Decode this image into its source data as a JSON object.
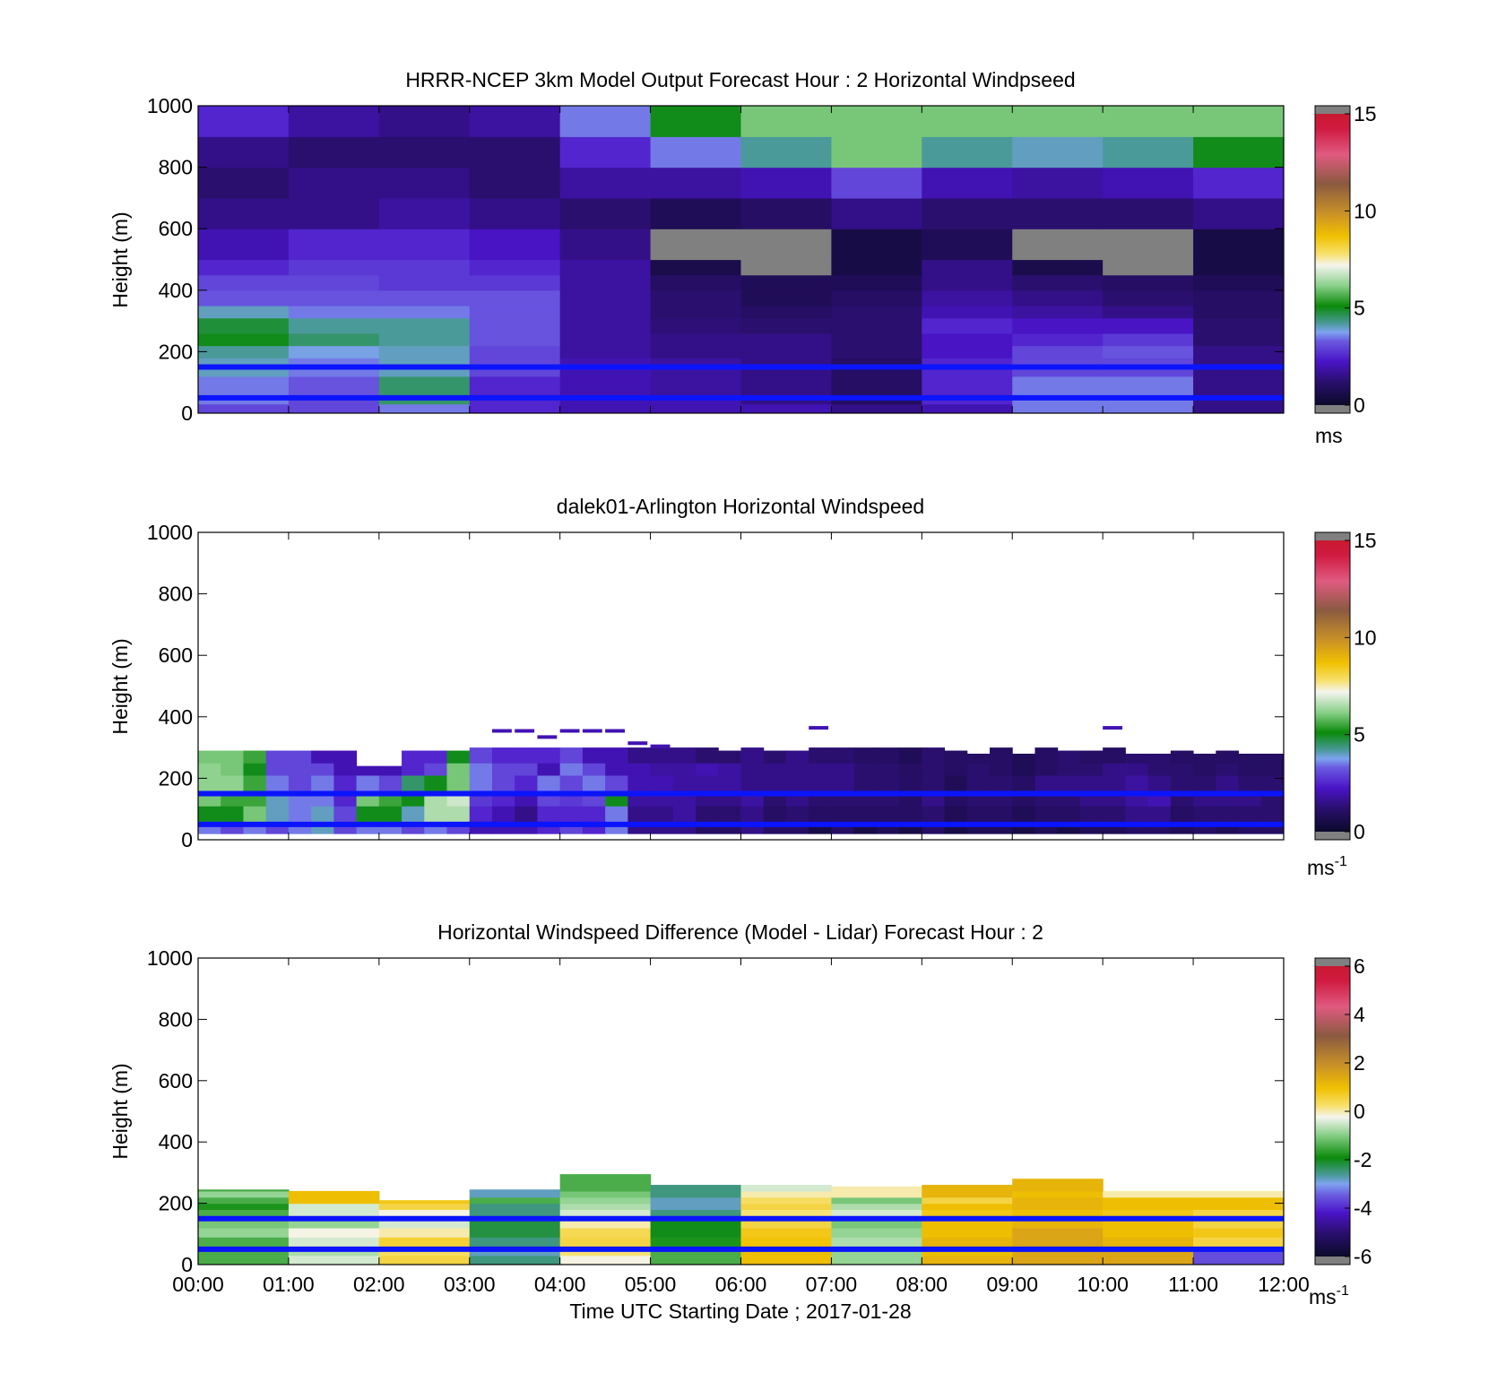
{
  "figure": {
    "xlabel": "Time UTC  Starting Date ; 2017-01-28",
    "x_tick_labels": [
      "00:00",
      "01:00",
      "02:00",
      "03:00",
      "04:00",
      "05:00",
      "06:00",
      "07:00",
      "08:00",
      "09:00",
      "10:00",
      "11:00",
      "12:00"
    ],
    "reference_line_heights": [
      50,
      150
    ],
    "reference_line_color": "#0a14ff"
  },
  "chart_data": [
    {
      "type": "heatmap",
      "title": "HRRR-NCEP 3km Model Output   Forecast Hour : 2 Horizontal Windpseed",
      "ylabel": "Height (m)",
      "ylim": [
        0,
        1000
      ],
      "y_ticks": [
        "0",
        "200",
        "400",
        "600",
        "800",
        "1000"
      ],
      "xlim_hours": [
        0,
        12
      ],
      "colorbar": {
        "range": [
          0,
          15
        ],
        "ticks": [
          "0",
          "5",
          "10",
          "15"
        ],
        "unit": "ms",
        "unit_superscript": ""
      },
      "row_bounds": [
        0,
        30,
        60,
        120,
        180,
        220,
        260,
        310,
        350,
        400,
        450,
        500,
        600,
        700,
        800,
        900,
        1000
      ],
      "columns_hours": [
        0,
        1,
        2,
        3,
        4,
        5,
        6,
        7,
        8,
        9,
        10,
        11
      ],
      "values": [
        [
          3.0,
          3.0,
          3.5,
          2.5,
          2.0,
          2.0,
          2.0,
          1.5,
          2.0,
          3.5,
          3.5,
          1.5
        ],
        [
          3.5,
          3.0,
          4.5,
          2.5,
          2.0,
          2.0,
          1.5,
          1.0,
          2.5,
          3.5,
          3.5,
          1.5
        ],
        [
          3.5,
          3.2,
          4.5,
          2.5,
          2.0,
          1.8,
          1.5,
          1.0,
          2.5,
          3.5,
          3.5,
          1.5
        ],
        [
          4.0,
          3.5,
          4.0,
          3.0,
          2.0,
          1.8,
          1.5,
          1.0,
          2.5,
          3.0,
          3.0,
          1.5
        ],
        [
          4.2,
          3.8,
          4.0,
          3.0,
          1.8,
          1.5,
          1.5,
          1.2,
          2.2,
          3.0,
          3.2,
          1.5
        ],
        [
          5.0,
          4.5,
          4.2,
          3.2,
          1.8,
          1.5,
          1.5,
          1.2,
          2.2,
          2.5,
          2.8,
          1.2
        ],
        [
          4.8,
          4.2,
          4.2,
          3.2,
          1.8,
          1.3,
          1.2,
          1.2,
          2.5,
          2.2,
          2.2,
          1.2
        ],
        [
          4.0,
          3.5,
          3.5,
          3.2,
          1.8,
          1.2,
          1.0,
          1.2,
          2.0,
          1.8,
          1.5,
          1.0
        ],
        [
          3.2,
          3.2,
          3.2,
          3.2,
          1.8,
          1.2,
          0.8,
          1.0,
          1.8,
          1.5,
          1.2,
          1.0
        ],
        [
          3.0,
          3.0,
          2.8,
          2.8,
          1.8,
          1.0,
          0.8,
          0.8,
          1.5,
          1.2,
          1.0,
          0.8
        ],
        [
          2.5,
          2.8,
          2.8,
          2.5,
          1.8,
          0.6,
          0.2,
          0.5,
          1.5,
          0.6,
          0.2,
          0.5
        ],
        [
          2.0,
          2.5,
          2.5,
          2.2,
          1.5,
          0.2,
          0.2,
          0.5,
          0.8,
          0.2,
          0.2,
          0.5
        ],
        [
          1.5,
          1.5,
          1.8,
          1.5,
          1.2,
          0.8,
          1.0,
          1.5,
          1.2,
          1.2,
          1.2,
          1.5
        ],
        [
          1.2,
          1.5,
          1.5,
          1.2,
          1.8,
          1.8,
          2.0,
          3.0,
          2.0,
          1.8,
          2.0,
          2.5
        ],
        [
          1.5,
          1.2,
          1.2,
          1.2,
          2.5,
          3.5,
          4.2,
          6.0,
          4.2,
          4.0,
          4.2,
          5.0
        ],
        [
          2.5,
          1.8,
          1.5,
          1.8,
          3.5,
          5.0,
          6.0,
          6.0,
          6.0,
          6.0,
          6.0,
          6.0
        ]
      ]
    },
    {
      "type": "heatmap",
      "title": "dalek01-Arlington  Horizontal Windspeed",
      "ylabel": "Height (m)",
      "ylim": [
        0,
        1000
      ],
      "y_ticks": [
        "0",
        "200",
        "400",
        "600",
        "800",
        "1000"
      ],
      "xlim_hours": [
        0,
        12
      ],
      "colorbar": {
        "range": [
          0,
          15
        ],
        "ticks": [
          "0",
          "5",
          "10",
          "15"
        ],
        "unit": "ms",
        "unit_superscript": "-1"
      },
      "column_width_hours": 0.25,
      "column_tops_m": [
        290,
        290,
        290,
        290,
        290,
        290,
        290,
        240,
        240,
        290,
        290,
        290,
        300,
        360,
        360,
        340,
        360,
        360,
        360,
        320,
        310,
        300,
        300,
        290,
        300,
        290,
        290,
        370,
        300,
        300,
        300,
        300,
        300,
        290,
        280,
        300,
        280,
        300,
        290,
        290,
        370,
        280,
        280,
        290,
        280,
        290,
        280,
        280
      ],
      "level_values": [
        [
          3.5,
          3.0,
          3.5,
          3.0,
          3.5,
          4.0,
          3.0,
          3.5,
          3.5,
          3.0,
          3.5,
          3.0,
          2.0,
          2.0,
          2.0,
          2.5,
          3.0,
          2.5,
          3.5,
          1.5,
          1.5,
          1.5,
          1.0,
          1.0,
          1.5,
          1.0,
          1.0,
          0.5,
          1.0,
          0.5,
          0.8,
          0.5,
          1.0,
          0.5,
          0.8,
          0.8,
          0.5,
          0.8,
          0.5,
          0.8,
          0.8,
          1.0,
          1.0,
          0.8,
          1.0,
          0.8,
          1.0,
          1.0
        ],
        [
          5.0,
          5.0,
          6.0,
          4.0,
          3.5,
          4.0,
          3.0,
          5.0,
          5.0,
          4.0,
          6.5,
          6.5,
          2.5,
          2.0,
          1.5,
          2.5,
          2.5,
          2.5,
          3.5,
          1.5,
          1.5,
          1.8,
          1.2,
          1.2,
          1.5,
          1.0,
          1.2,
          1.0,
          1.0,
          1.0,
          1.0,
          1.0,
          1.2,
          0.8,
          1.0,
          1.0,
          0.8,
          1.0,
          1.0,
          1.2,
          1.2,
          1.5,
          1.5,
          1.0,
          1.2,
          1.2,
          1.2,
          1.2
        ],
        [
          6.0,
          5.5,
          5.5,
          4.0,
          3.5,
          3.5,
          2.5,
          6.0,
          5.5,
          5.0,
          6.5,
          6.8,
          2.8,
          2.5,
          2.0,
          3.0,
          2.8,
          3.0,
          5.0,
          1.8,
          1.8,
          1.8,
          1.5,
          1.5,
          1.8,
          1.2,
          1.5,
          1.2,
          1.2,
          1.2,
          1.2,
          1.0,
          1.5,
          1.0,
          1.2,
          1.2,
          1.0,
          1.2,
          1.2,
          1.5,
          1.5,
          1.8,
          2.0,
          1.2,
          1.5,
          1.5,
          1.5,
          1.2
        ],
        [
          6.2,
          6.2,
          5.5,
          3.5,
          3.0,
          3.5,
          2.5,
          3.5,
          3.0,
          4.5,
          5.0,
          6.0,
          3.5,
          3.0,
          2.5,
          3.5,
          3.0,
          3.5,
          3.0,
          2.0,
          2.0,
          1.8,
          1.8,
          1.8,
          1.5,
          1.5,
          1.5,
          1.5,
          1.5,
          1.2,
          1.2,
          1.0,
          1.2,
          0.8,
          1.2,
          1.2,
          1.0,
          1.5,
          1.5,
          1.5,
          1.5,
          1.8,
          1.5,
          1.2,
          1.2,
          1.5,
          1.2,
          1.2
        ],
        [
          6.2,
          6.0,
          5.0,
          3.0,
          3.0,
          3.0,
          2.0,
          2.0,
          2.0,
          2.5,
          3.0,
          6.0,
          3.5,
          3.0,
          3.0,
          2.0,
          3.5,
          3.0,
          2.0,
          2.0,
          1.8,
          1.8,
          2.0,
          1.8,
          1.5,
          1.5,
          1.5,
          1.5,
          1.5,
          1.2,
          1.2,
          1.0,
          1.2,
          1.0,
          1.2,
          1.0,
          0.8,
          1.0,
          1.2,
          1.2,
          1.5,
          1.5,
          1.2,
          1.2,
          1.0,
          1.2,
          1.0,
          1.0
        ],
        [
          6.0,
          6.0,
          5.5,
          3.0,
          3.0,
          2.0,
          2.0,
          0,
          0,
          2.5,
          2.5,
          5.0,
          3.0,
          2.5,
          2.5,
          2.5,
          3.0,
          2.0,
          2.0,
          1.5,
          1.5,
          1.5,
          1.2,
          1.2,
          1.5,
          1.2,
          1.5,
          1.2,
          1.2,
          1.0,
          1.0,
          0.8,
          1.2,
          1.0,
          1.0,
          1.0,
          0.8,
          1.0,
          1.2,
          1.0,
          1.0,
          1.2,
          1.2,
          1.0,
          1.0,
          1.0,
          1.0,
          1.0
        ]
      ],
      "level_bounds": [
        20,
        60,
        110,
        160,
        210,
        250,
        300
      ]
    },
    {
      "type": "heatmap",
      "title": "Horizontal Windspeed Difference (Model - Lidar) Forecast Hour : 2",
      "ylabel": "Height (m)",
      "ylim": [
        0,
        1000
      ],
      "y_ticks": [
        "0",
        "200",
        "400",
        "600",
        "800",
        "1000"
      ],
      "xlim_hours": [
        0,
        12
      ],
      "colorbar": {
        "range": [
          -6,
          6
        ],
        "ticks": [
          "-6",
          "-4",
          "-2",
          "0",
          "2",
          "4",
          "6"
        ],
        "unit": "ms",
        "unit_superscript": "-1"
      },
      "row_bounds": [
        0,
        30,
        60,
        90,
        120,
        150,
        180,
        200,
        220,
        240,
        260,
        280,
        300
      ],
      "columns_hours": [
        0,
        1,
        2,
        3,
        4,
        5,
        6,
        7,
        8,
        9,
        10,
        11
      ],
      "column_tops_m": [
        245,
        240,
        210,
        245,
        295,
        260,
        260,
        255,
        260,
        280,
        240,
        240
      ],
      "values": [
        [
          -1.5,
          -0.5,
          0.5,
          -2.5,
          -0.2,
          -1.5,
          1.0,
          -1.0,
          1.2,
          1.5,
          1.5,
          -3.5
        ],
        [
          -1.5,
          -0.8,
          0.3,
          -2.8,
          0.2,
          -1.5,
          1.0,
          -1.0,
          1.0,
          1.5,
          1.5,
          -3.5
        ],
        [
          -1.5,
          -0.5,
          0.6,
          -2.5,
          0.5,
          -1.8,
          0.9,
          -0.8,
          1.2,
          1.5,
          1.2,
          0.5
        ],
        [
          -1.0,
          -0.2,
          0.0,
          -2.2,
          0.4,
          -2.0,
          0.8,
          -1.0,
          1.0,
          1.5,
          1.0,
          0.8
        ],
        [
          -1.2,
          -1.0,
          -0.5,
          -2.2,
          0.0,
          -2.0,
          0.5,
          -1.2,
          1.0,
          1.2,
          1.0,
          0.5
        ],
        [
          -1.5,
          -0.5,
          -0.2,
          -2.5,
          -0.5,
          -2.5,
          0.2,
          -0.5,
          0.8,
          1.0,
          0.8,
          0.5
        ],
        [
          -1.8,
          -0.5,
          0.5,
          -2.5,
          -0.8,
          -2.8,
          0.5,
          -0.8,
          1.0,
          1.2,
          1.0,
          1.0
        ],
        [
          -1.5,
          1.0,
          0.8,
          -1.5,
          -1.0,
          -2.8,
          0.3,
          -1.2,
          0.5,
          1.2,
          1.0,
          1.0
        ],
        [
          -1.0,
          1.0,
          0.5,
          -2.8,
          -1.2,
          -2.5,
          0.0,
          0.0,
          1.2,
          1.0,
          0.0,
          0.0
        ],
        [
          -1.5,
          -0.5,
          null,
          -2.8,
          -1.5,
          -2.5,
          -0.5,
          0.0,
          1.2,
          1.2,
          -0.5,
          -0.2
        ],
        [
          null,
          null,
          null,
          null,
          -1.5,
          -2.5,
          -0.2,
          -1.5,
          1.2,
          1.2,
          null,
          null
        ],
        [
          null,
          null,
          null,
          null,
          -1.5,
          null,
          null,
          null,
          null,
          null,
          null,
          null
        ]
      ]
    }
  ]
}
